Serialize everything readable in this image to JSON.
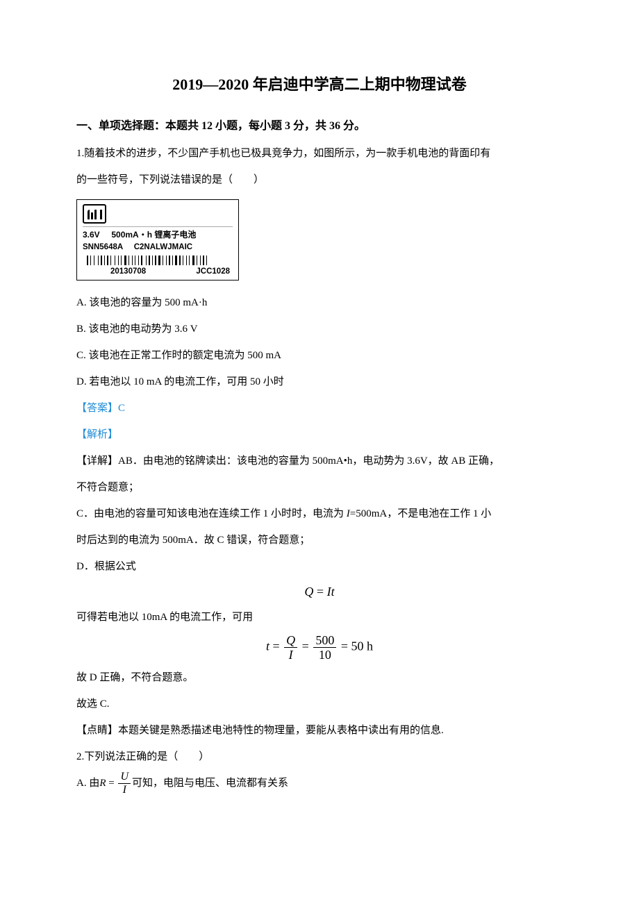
{
  "title": "2019—2020 年启迪中学高二上期中物理试卷",
  "section": "一、单项选择题：本题共 12 小题，每小题 3 分，共 36 分。",
  "q1": {
    "stem1": "1.随着技术的进步，不少国产手机也已极具竞争力，如图所示，为一款手机电池的背面印有",
    "stem2": "的一些符号，下列说法错误的是（　　）",
    "battery": {
      "line1a": "3.6V",
      "line1b": "500mA・h 锂离子电池",
      "line2a": "SNN5648A",
      "line2b": "C2NALWJMAIC",
      "line3a": "20130708",
      "line3b": "JCC1028"
    },
    "A": "A.  该电池的容量为 500 mA·h",
    "B": "B.  该电池的电动势为 3.6 V",
    "C": "C.  该电池在正常工作时的额定电流为 500 mA",
    "D": "D.  若电池以 10 mA 的电流工作，可用 50 小时",
    "answer": "【答案】C",
    "explain_label": "【解析】",
    "detail1": "【详解】AB．由电池的铭牌读出：该电池的容量为 500mA•h，电动势为 3.6V，故 AB 正确，",
    "detail1b": "不符合题意；",
    "detail2a": "C．由电池的容量可知该电池在连续工作 1 小时时，电流为 ",
    "detail2_I": "I",
    "detail2b": "=500mA，不是电池在工作 1 小",
    "detail2c": "时后达到的电流为 500mA．故 C 错误，符合题意；",
    "detail3": "D．根据公式",
    "formula1": {
      "left": "Q",
      "eq": " = ",
      "right": "It"
    },
    "detail4": "可得若电池以 10mA 的电流工作，可用",
    "formula2": {
      "t": "t",
      "eq1": " = ",
      "Q": "Q",
      "I": "I",
      "eq2": " = ",
      "n500": "500",
      "n10": "10",
      "eq3": " = ",
      "res": "50",
      "unit": "h"
    },
    "detail5": "故 D 正确，不符合题意。",
    "detail6": "故选 C.",
    "tip": "【点睛】本题关键是熟悉描述电池特性的物理量，要能从表格中读出有用的信息."
  },
  "q2": {
    "stem": "2.下列说法正确的是（　　）",
    "A_pre": "A.  由",
    "A_R": "R",
    "A_eq": " = ",
    "A_U": "U",
    "A_I": "I",
    "A_post": "可知，电阻与电压、电流都有关系"
  },
  "barcode_widths": [
    2,
    1,
    1,
    2,
    1,
    3,
    1,
    1,
    2,
    1,
    1,
    1,
    2,
    1,
    1,
    3,
    1,
    2,
    1,
    1,
    1,
    2,
    3,
    1,
    1,
    2,
    1,
    1,
    1,
    2,
    1,
    1,
    2,
    3,
    1,
    1,
    2,
    1,
    1,
    1,
    2,
    1,
    3,
    1,
    1,
    2,
    1,
    1,
    2,
    1,
    1,
    1,
    3,
    1,
    2,
    1,
    1,
    2,
    1,
    1,
    1,
    2,
    3,
    1,
    1,
    2,
    1,
    1,
    2,
    1,
    1,
    2
  ]
}
